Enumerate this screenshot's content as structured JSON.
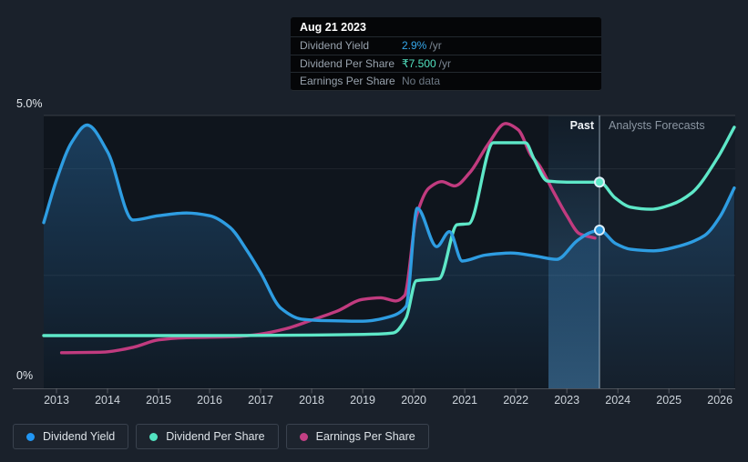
{
  "tooltip": {
    "title": "Aug 21 2023",
    "rows": [
      {
        "label": "Dividend Yield",
        "value": "2.9%",
        "suffix": "/yr",
        "value_color": "#35a7ea"
      },
      {
        "label": "Dividend Per Share",
        "value": "₹7.500",
        "suffix": "/yr",
        "value_color": "#52e2c0"
      },
      {
        "label": "Earnings Per Share",
        "value": "No data",
        "value_color": "#6d7884"
      }
    ]
  },
  "annotations": {
    "past_label": "Past",
    "forecast_label": "Analysts Forecasts"
  },
  "legend": [
    {
      "label": "Dividend Yield",
      "color": "#2196f3"
    },
    {
      "label": "Dividend Per Share",
      "color": "#52e2c0"
    },
    {
      "label": "Earnings Per Share",
      "color": "#c24084"
    }
  ],
  "chart_data": {
    "type": "line",
    "xlim": [
      2012.75,
      2026.3
    ],
    "x_ticks": [
      2013,
      2014,
      2015,
      2016,
      2017,
      2018,
      2019,
      2020,
      2021,
      2022,
      2023,
      2024,
      2025,
      2026
    ],
    "y_axis": {
      "ylim": [
        0,
        5
      ],
      "unit": "%",
      "labels": [
        {
          "text": "5.0%",
          "pct": 5
        },
        {
          "text": "0%",
          "pct": 0
        }
      ],
      "gridlines_pct": [
        5,
        4,
        2
      ]
    },
    "boundary": {
      "divider_year": 2023.64,
      "band_start_year": 2022.64,
      "past_label": "Past",
      "forecast_label": "Analysts Forecasts"
    },
    "series": [
      {
        "id": "dividend-yield",
        "name": "Dividend Yield",
        "color": "#2e9de2",
        "area": true,
        "points": [
          [
            2012.75,
            2.99
          ],
          [
            2013.0,
            3.79
          ],
          [
            2013.3,
            4.5
          ],
          [
            2013.6,
            4.82
          ],
          [
            2014.0,
            4.32
          ],
          [
            2014.5,
            3.04
          ],
          [
            2015.0,
            3.12
          ],
          [
            2015.55,
            3.17
          ],
          [
            2016.0,
            3.12
          ],
          [
            2016.4,
            2.9
          ],
          [
            2016.75,
            2.44
          ],
          [
            2017.0,
            2.05
          ],
          [
            2017.4,
            1.38
          ],
          [
            2017.8,
            1.18
          ],
          [
            2018.3,
            1.15
          ],
          [
            2019.0,
            1.14
          ],
          [
            2019.55,
            1.23
          ],
          [
            2019.85,
            1.42
          ],
          [
            2020.07,
            3.26
          ],
          [
            2020.45,
            2.54
          ],
          [
            2020.7,
            2.82
          ],
          [
            2020.95,
            2.27
          ],
          [
            2021.4,
            2.38
          ],
          [
            2021.9,
            2.42
          ],
          [
            2022.4,
            2.36
          ],
          [
            2022.8,
            2.3
          ],
          [
            2023.2,
            2.65
          ],
          [
            2023.45,
            2.8
          ],
          [
            2023.64,
            2.85
          ],
          [
            2023.95,
            2.6
          ],
          [
            2024.25,
            2.49
          ],
          [
            2024.7,
            2.46
          ],
          [
            2025.2,
            2.55
          ],
          [
            2025.7,
            2.75
          ],
          [
            2026.0,
            3.1
          ],
          [
            2026.28,
            3.64
          ]
        ]
      },
      {
        "id": "dividend-per-share",
        "name": "Dividend Per Share",
        "color": "#5ee8c8",
        "area": false,
        "points": [
          [
            2012.75,
            0.87
          ],
          [
            2014.0,
            0.87
          ],
          [
            2016.0,
            0.87
          ],
          [
            2018.0,
            0.88
          ],
          [
            2019.3,
            0.9
          ],
          [
            2019.6,
            0.92
          ],
          [
            2019.85,
            1.2
          ],
          [
            2020.05,
            1.9
          ],
          [
            2020.5,
            1.94
          ],
          [
            2020.85,
            2.95
          ],
          [
            2021.08,
            2.97
          ],
          [
            2021.56,
            4.49
          ],
          [
            2022.19,
            4.49
          ],
          [
            2022.35,
            4.2
          ],
          [
            2022.62,
            3.77
          ],
          [
            2023.0,
            3.75
          ],
          [
            2023.64,
            3.75
          ],
          [
            2023.95,
            3.45
          ],
          [
            2024.25,
            3.28
          ],
          [
            2024.65,
            3.24
          ],
          [
            2025.05,
            3.33
          ],
          [
            2025.45,
            3.55
          ],
          [
            2025.95,
            4.2
          ],
          [
            2026.28,
            4.78
          ]
        ]
      },
      {
        "id": "earnings-per-share",
        "name": "Earnings Per Share",
        "color": "#c13b7f",
        "area": false,
        "points": [
          [
            2013.1,
            0.55
          ],
          [
            2013.9,
            0.56
          ],
          [
            2014.5,
            0.65
          ],
          [
            2015.0,
            0.79
          ],
          [
            2015.5,
            0.83
          ],
          [
            2016.5,
            0.85
          ],
          [
            2017.0,
            0.9
          ],
          [
            2017.5,
            1.0
          ],
          [
            2018.0,
            1.16
          ],
          [
            2018.5,
            1.33
          ],
          [
            2019.0,
            1.55
          ],
          [
            2019.35,
            1.58
          ],
          [
            2019.65,
            1.52
          ],
          [
            2019.82,
            1.62
          ],
          [
            2020.05,
            3.1
          ],
          [
            2020.3,
            3.64
          ],
          [
            2020.55,
            3.76
          ],
          [
            2020.8,
            3.68
          ],
          [
            2021.1,
            3.93
          ],
          [
            2021.45,
            4.45
          ],
          [
            2021.8,
            4.85
          ],
          [
            2022.05,
            4.73
          ],
          [
            2022.3,
            4.25
          ],
          [
            2022.45,
            4.08
          ],
          [
            2022.75,
            3.55
          ],
          [
            2023.0,
            3.12
          ],
          [
            2023.25,
            2.78
          ],
          [
            2023.55,
            2.7
          ]
        ]
      }
    ],
    "markers": [
      {
        "series": "dividend-yield",
        "year": 2023.64,
        "pct": 2.85
      },
      {
        "series": "dividend-per-share",
        "year": 2023.64,
        "pct": 3.75
      }
    ]
  }
}
